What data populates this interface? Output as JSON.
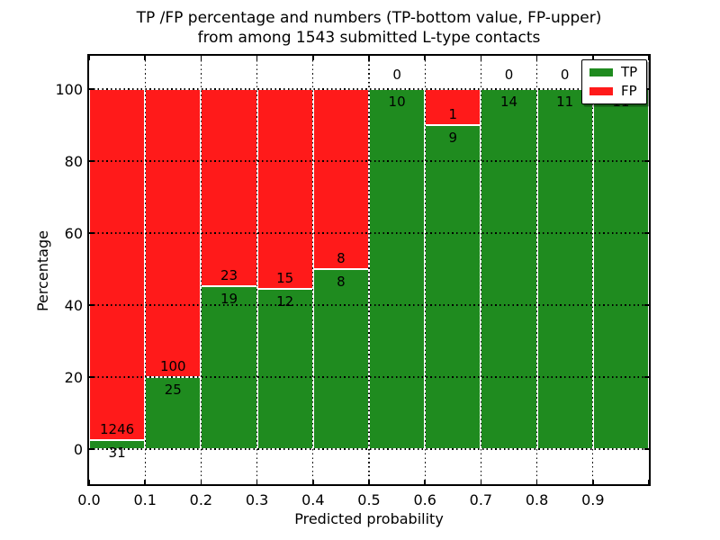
{
  "title": {
    "line1": "TP /FP percentage and numbers (TP-bottom value, FP-upper)",
    "line2": "from among 1543 submitted L-type contacts"
  },
  "axes": {
    "xlabel": "Predicted probability",
    "ylabel": "Percentage",
    "x_tick_labels": [
      "0.0",
      "0.1",
      "0.2",
      "0.3",
      "0.4",
      "0.5",
      "0.6",
      "0.7",
      "0.8",
      "0.9"
    ],
    "y_tick_labels": [
      "0",
      "20",
      "40",
      "60",
      "80",
      "100"
    ],
    "y_tick_values": [
      0,
      20,
      40,
      60,
      80,
      100
    ],
    "xlim": [
      0.0,
      1.0
    ],
    "grid_style": "dotted"
  },
  "legend": {
    "items": [
      {
        "label": "TP",
        "color": "#1f8b1f"
      },
      {
        "label": "FP",
        "color": "#ff1a1a"
      }
    ],
    "position": "upper right"
  },
  "chart_data": {
    "type": "bar",
    "stacked": true,
    "normalized_to_percent": 100,
    "bin_edges": [
      0.0,
      0.1,
      0.2,
      0.3,
      0.4,
      0.5,
      0.6,
      0.7,
      0.8,
      0.9,
      1.0
    ],
    "series": [
      {
        "name": "TP",
        "color": "#1f8b1f",
        "counts": [
          31,
          25,
          19,
          12,
          8,
          10,
          9,
          14,
          11,
          11
        ]
      },
      {
        "name": "FP",
        "color": "#ff1a1a",
        "counts": [
          1246,
          100,
          23,
          15,
          8,
          0,
          1,
          0,
          0,
          0
        ]
      }
    ],
    "tp_percent_per_bin": [
      2.43,
      20.0,
      45.24,
      44.44,
      50.0,
      100.0,
      90.0,
      100.0,
      100.0,
      100.0
    ],
    "total_contacts": 1543,
    "title": "TP /FP percentage and numbers (TP-bottom value, FP-upper) from among 1543 submitted L-type contacts",
    "xlabel": "Predicted probability",
    "ylabel": "Percentage",
    "ylim_ticks": [
      0,
      20,
      40,
      60,
      80,
      100
    ],
    "legend_position": "upper right",
    "grid": "dotted"
  },
  "colors": {
    "tp": "#1f8b1f",
    "fp": "#ff1a1a",
    "bar_edge": "#ffffff",
    "background": "#ffffff",
    "text": "#000000"
  }
}
